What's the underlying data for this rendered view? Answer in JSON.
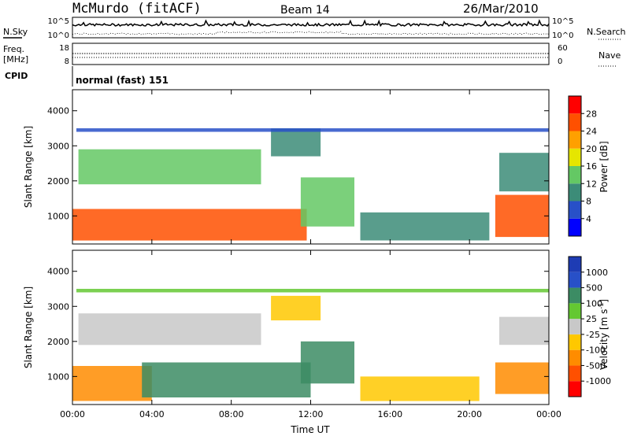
{
  "header": {
    "title": "McMurdo (fitACF)",
    "beam": "Beam 14",
    "date": "26/Mar/2010"
  },
  "summary_panels": {
    "noise_label_left": "N.Sky",
    "noise_label_right": "N.Search",
    "noise_ticks_left": [
      "10^5",
      "10^0"
    ],
    "noise_ticks_right": [
      "10^5",
      "10^0"
    ],
    "freq_label": "Freq.",
    "freq_unit": "[MHz]",
    "freq_ticks": [
      "18",
      "8"
    ],
    "nave_label": "Nave",
    "nave_ticks": [
      "60",
      "0"
    ],
    "cpid_label": "CPID",
    "cpid_value": "normal (fast) 151"
  },
  "colors": {
    "power_scale": [
      "#0000ff",
      "#2850c8",
      "#3c8c78",
      "#64c864",
      "#e6e600",
      "#ffa000",
      "#ff5000",
      "#ff0000"
    ],
    "velocity_scale": [
      "#ff0000",
      "#ff5000",
      "#ff8c00",
      "#ffc800",
      "#c8c8c8",
      "#64c832",
      "#3c8c64",
      "#2850c8",
      "#1e3cb4"
    ]
  },
  "chart_data": [
    {
      "type": "heatmap",
      "quantity": "Power",
      "ylabel": "Slant Range [km]",
      "ylim": [
        200,
        4600
      ],
      "yticks": [
        "1000",
        "2000",
        "3000",
        "4000"
      ],
      "xticks": [
        "00:00",
        "04:00",
        "08:00",
        "12:00",
        "16:00",
        "20:00",
        "00:00"
      ],
      "colorbar_label": "Power [dB]",
      "colorbar_ticks": [
        "4",
        "8",
        "12",
        "16",
        "20",
        "24",
        "28"
      ],
      "regions": [
        {
          "t0": 0.0,
          "t1": 11.8,
          "r0": 300,
          "r1": 1200,
          "value": 26
        },
        {
          "t0": 11.5,
          "t1": 14.2,
          "r0": 700,
          "r1": 2100,
          "value": 14
        },
        {
          "t0": 0.3,
          "t1": 9.5,
          "r0": 1900,
          "r1": 2900,
          "value": 12
        },
        {
          "t0": 10.0,
          "t1": 12.5,
          "r0": 2700,
          "r1": 3500,
          "value": 8
        },
        {
          "t0": 14.5,
          "t1": 21.0,
          "r0": 300,
          "r1": 1100,
          "value": 10
        },
        {
          "t0": 21.3,
          "t1": 24.0,
          "r0": 400,
          "r1": 1600,
          "value": 24
        },
        {
          "t0": 21.5,
          "t1": 24.0,
          "r0": 1700,
          "r1": 2800,
          "value": 10
        },
        {
          "t0": 0.2,
          "t1": 24.0,
          "r0": 3400,
          "r1": 3500,
          "value": 5
        }
      ]
    },
    {
      "type": "heatmap",
      "quantity": "Velocity",
      "ylabel": "Slant Range [km]",
      "xlabel": "Time UT",
      "ylim": [
        200,
        4600
      ],
      "yticks": [
        "1000",
        "2000",
        "3000",
        "4000"
      ],
      "xticks": [
        "00:00",
        "04:00",
        "08:00",
        "12:00",
        "16:00",
        "20:00",
        "00:00"
      ],
      "colorbar_label": "Velocity [m s",
      "colorbar_label_sup": "-1",
      "colorbar_label_end": "]",
      "colorbar_ticks": [
        "-1000",
        "-500",
        "-100",
        "-25",
        "25",
        "100",
        "500",
        "1000"
      ],
      "regions": [
        {
          "t0": 0.0,
          "t1": 4.0,
          "r0": 300,
          "r1": 1300,
          "value": -150
        },
        {
          "t0": 3.5,
          "t1": 12.0,
          "r0": 400,
          "r1": 1400,
          "value": 250
        },
        {
          "t0": 11.5,
          "t1": 14.2,
          "r0": 800,
          "r1": 2000,
          "value": 150
        },
        {
          "t0": 0.3,
          "t1": 9.5,
          "r0": 1900,
          "r1": 2800,
          "value": 0
        },
        {
          "t0": 10.0,
          "t1": 12.5,
          "r0": 2600,
          "r1": 3300,
          "value": -50
        },
        {
          "t0": 14.5,
          "t1": 20.5,
          "r0": 300,
          "r1": 1000,
          "value": -60
        },
        {
          "t0": 21.3,
          "t1": 24.0,
          "r0": 500,
          "r1": 1400,
          "value": -200
        },
        {
          "t0": 21.5,
          "t1": 24.0,
          "r0": 1900,
          "r1": 2700,
          "value": 0
        },
        {
          "t0": 0.2,
          "t1": 24.0,
          "r0": 3400,
          "r1": 3500,
          "value": 60
        }
      ]
    }
  ]
}
